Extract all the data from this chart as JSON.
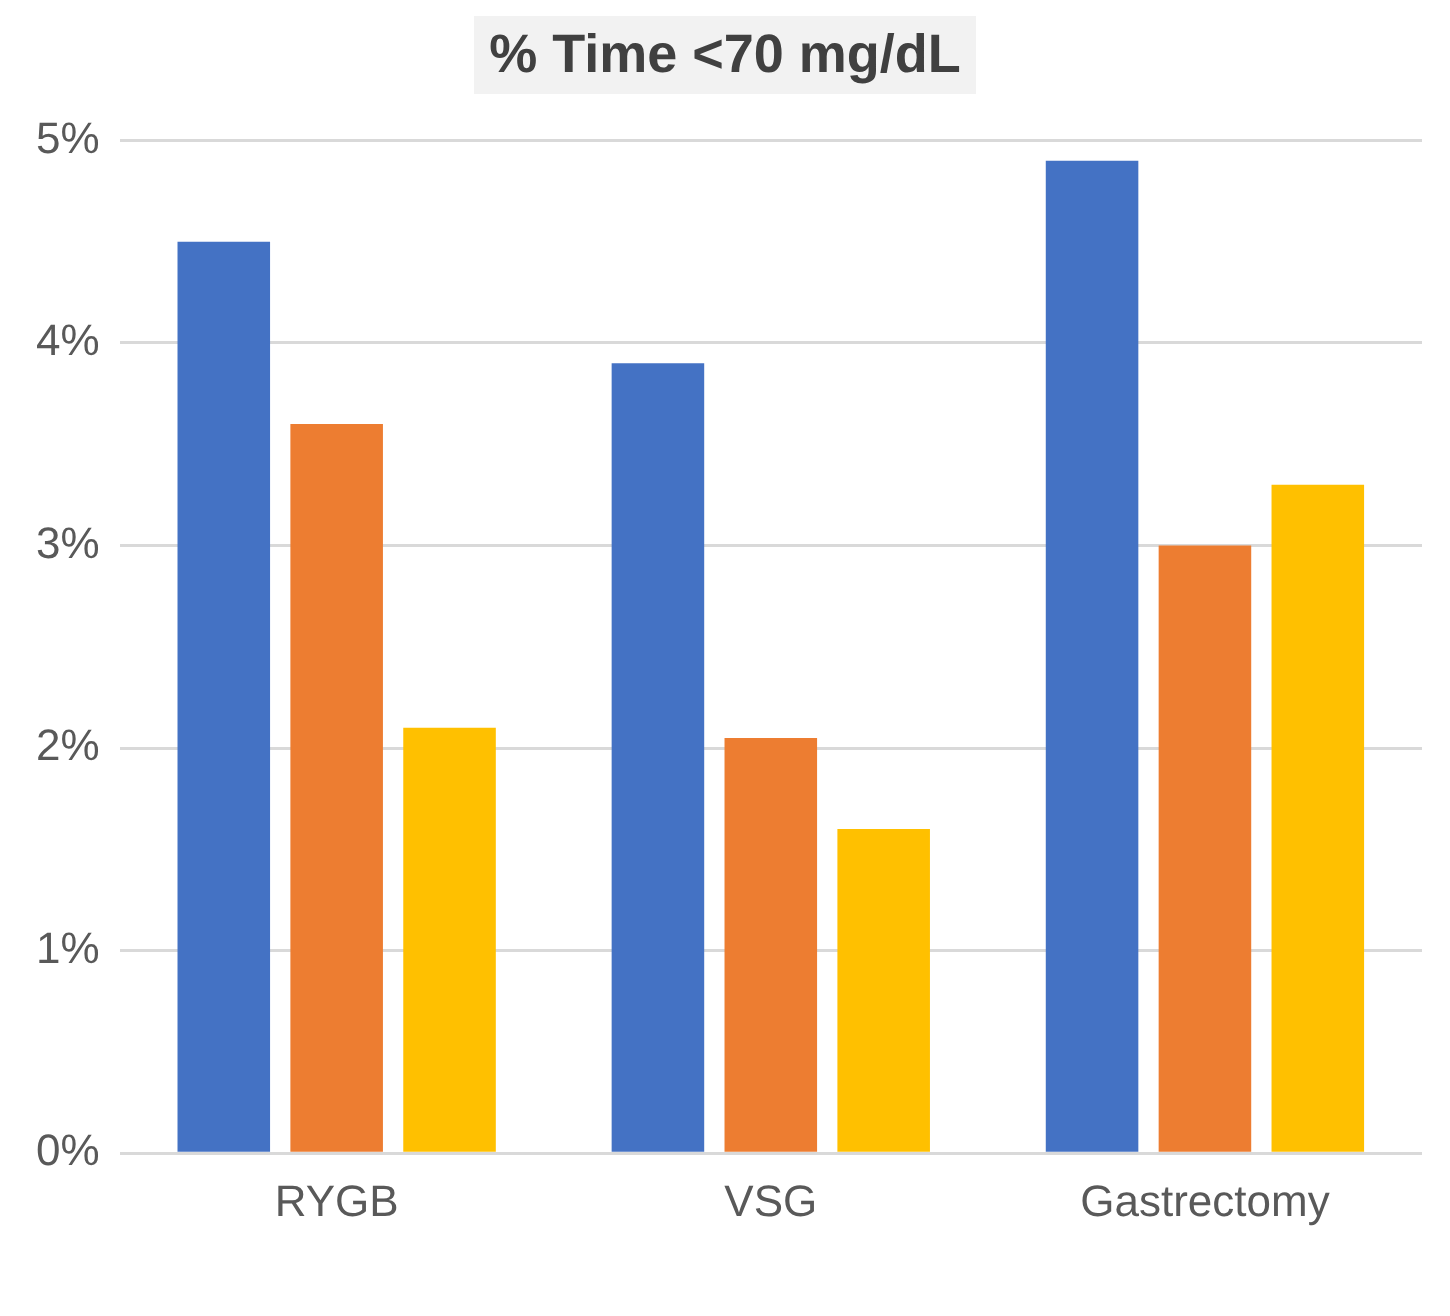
{
  "chart_data": {
    "type": "bar",
    "title": "% Time <70 mg/dL",
    "categories": [
      "RYGB",
      "VSG",
      "Gastrectomy"
    ],
    "series": [
      {
        "color": "#4472c4",
        "values": [
          4.5,
          3.9,
          4.9
        ]
      },
      {
        "color": "#ed7d31",
        "values": [
          3.6,
          2.05,
          3.0
        ]
      },
      {
        "color": "#ffc000",
        "values": [
          2.1,
          1.6,
          3.3
        ]
      }
    ],
    "ylim": [
      0,
      5
    ],
    "yticks": [
      {
        "value": 0,
        "label": "0%"
      },
      {
        "value": 1,
        "label": "1%"
      },
      {
        "value": 2,
        "label": "2%"
      },
      {
        "value": 3,
        "label": "3%"
      },
      {
        "value": 4,
        "label": "4%"
      },
      {
        "value": 5,
        "label": "5%"
      }
    ],
    "grid": "y",
    "legend": false
  }
}
